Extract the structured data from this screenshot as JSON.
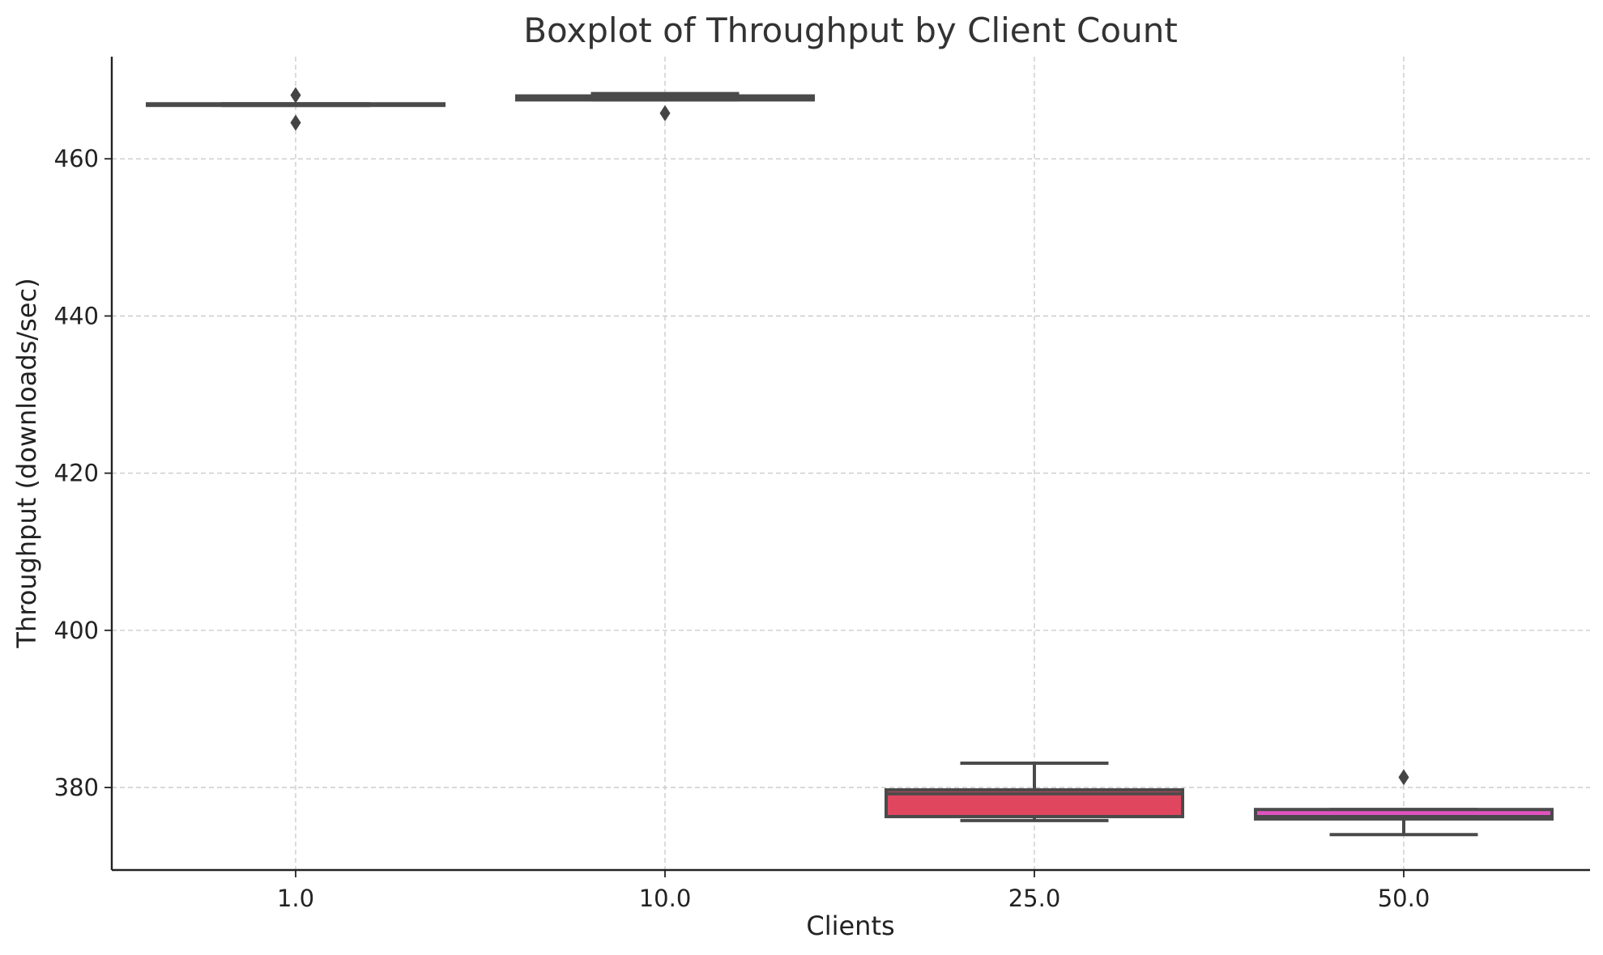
{
  "chart_data": {
    "type": "box",
    "title": "Boxplot of Throughput by Client Count",
    "xlabel": "Clients",
    "ylabel": "Throughput (downloads/sec)",
    "ylim": [
      369.5,
      473
    ],
    "yticks": [
      380,
      400,
      420,
      440,
      460
    ],
    "grid": true,
    "categories": [
      "1.0",
      "10.0",
      "25.0",
      "50.0"
    ],
    "series": [
      {
        "category": "1.0",
        "color": "#5a8fd8",
        "whislo": 466.8,
        "q1": 466.8,
        "median": 466.9,
        "q3": 467.0,
        "whishi": 467.0,
        "fliers": [
          468.1,
          464.6
        ]
      },
      {
        "category": "10.0",
        "color": "#9b8fd0",
        "whislo": 467.5,
        "q1": 467.5,
        "median": 467.7,
        "q3": 468.0,
        "whishi": 468.3,
        "fliers": [
          465.8
        ]
      },
      {
        "category": "25.0",
        "color": "#e0475f",
        "whislo": 375.8,
        "q1": 376.3,
        "median": 379.2,
        "q3": 379.7,
        "whishi": 383.1,
        "fliers": []
      },
      {
        "category": "50.0",
        "color": "#e052c0",
        "whislo": 374.0,
        "q1": 376.0,
        "median": 376.3,
        "q3": 377.2,
        "whishi": 377.2,
        "fliers": [
          381.3
        ]
      }
    ]
  }
}
